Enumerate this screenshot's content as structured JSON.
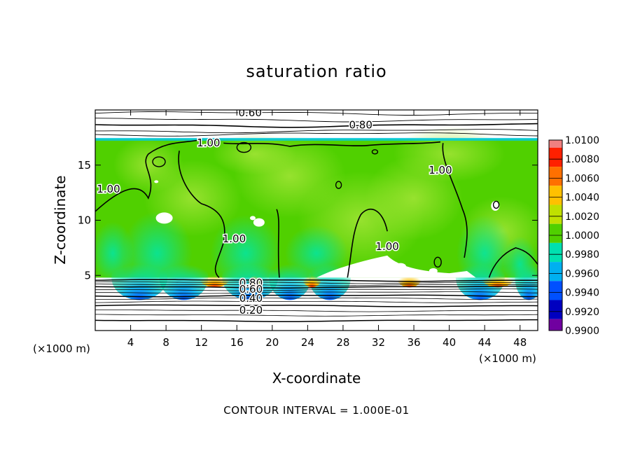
{
  "chart_data": {
    "type": "heatmap",
    "title": "saturation ratio",
    "xlabel": "X-coordinate",
    "ylabel": "Z-coordinate",
    "x_unit_left": "(×1000 m)",
    "x_unit_right": "(×1000 m)",
    "xlim": [
      0,
      50
    ],
    "ylim": [
      0,
      20
    ],
    "x_ticks": [
      4,
      8,
      12,
      16,
      20,
      24,
      28,
      32,
      36,
      40,
      44,
      48
    ],
    "y_ticks": [
      5,
      10,
      15
    ],
    "colorbar": {
      "levels": [
        "1.0100",
        "1.0080",
        "1.0060",
        "1.0040",
        "1.0020",
        "1.0000",
        "0.9980",
        "0.9960",
        "0.9940",
        "0.9920",
        "0.9900"
      ],
      "colors": [
        "#f08080",
        "#ff2000",
        "#ff7000",
        "#ffc000",
        "#c0e000",
        "#50d000",
        "#00e0b0",
        "#00b0f0",
        "#0050ff",
        "#0000c0",
        "#7000a0"
      ]
    },
    "contour_labels": [
      {
        "text": "0.60",
        "x": 17.5,
        "z": 19.7
      },
      {
        "text": "0.80",
        "x": 30.0,
        "z": 18.6
      },
      {
        "text": "1.00",
        "x": 12.8,
        "z": 17.0
      },
      {
        "text": "1.00",
        "x": 1.5,
        "z": 12.8
      },
      {
        "text": "1.00",
        "x": 39.0,
        "z": 14.5
      },
      {
        "text": "1.00",
        "x": 15.7,
        "z": 8.3
      },
      {
        "text": "1.00",
        "x": 33.0,
        "z": 7.6
      },
      {
        "text": "0.80",
        "x": 17.6,
        "z": 4.3
      },
      {
        "text": "0.60",
        "x": 17.6,
        "z": 3.7
      },
      {
        "text": "0.40",
        "x": 17.6,
        "z": 2.9
      },
      {
        "text": "0.20",
        "x": 17.6,
        "z": 1.8
      }
    ],
    "cloud_top_z": 17.4,
    "cloud_base_z": 4.8,
    "grid": false
  },
  "footer": "CONTOUR INTERVAL = 1.000E-01"
}
